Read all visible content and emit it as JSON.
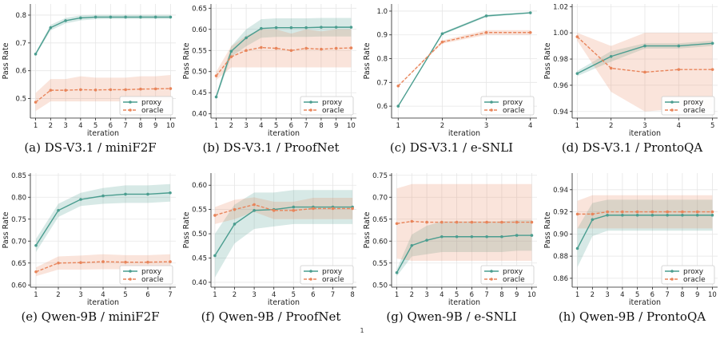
{
  "colors": {
    "proxy": "#4a9d8f",
    "oracle": "#e8845a",
    "grid": "#e6e6e6",
    "axis": "#222222"
  },
  "chart_data": [
    {
      "type": "line",
      "caption": "(a) DS-V3.1 / miniF2F",
      "xlabel": "iteration",
      "ylabel": "Pass Rate",
      "x": [
        1,
        2,
        3,
        4,
        5,
        6,
        7,
        8,
        9,
        10
      ],
      "xlim": [
        0.65,
        10.35
      ],
      "ylim": [
        0.43,
        0.84
      ],
      "yticks": [
        0.5,
        0.6,
        0.7,
        0.8
      ],
      "tick_decimals": 1,
      "grid": true,
      "legend": "lower-right",
      "series": [
        {
          "name": "proxy",
          "key": "proxy",
          "values": [
            0.66,
            0.755,
            0.78,
            0.79,
            0.793,
            0.793,
            0.793,
            0.793,
            0.793,
            0.793
          ],
          "lo": [
            0.655,
            0.745,
            0.77,
            0.781,
            0.785,
            0.786,
            0.786,
            0.786,
            0.786,
            0.786
          ],
          "hi": [
            0.665,
            0.765,
            0.79,
            0.799,
            0.801,
            0.801,
            0.801,
            0.801,
            0.801,
            0.801
          ]
        },
        {
          "name": "oracle",
          "key": "oracle",
          "values": [
            0.487,
            0.53,
            0.53,
            0.532,
            0.531,
            0.532,
            0.532,
            0.534,
            0.535,
            0.536
          ],
          "lo": [
            0.455,
            0.49,
            0.49,
            0.49,
            0.49,
            0.49,
            0.49,
            0.49,
            0.49,
            0.49
          ],
          "hi": [
            0.52,
            0.57,
            0.57,
            0.58,
            0.575,
            0.575,
            0.575,
            0.58,
            0.58,
            0.585
          ]
        }
      ]
    },
    {
      "type": "line",
      "caption": "(b) DS-V3.1 / ProofNet",
      "xlabel": "iteration",
      "ylabel": "Pass Rate",
      "x": [
        1,
        2,
        3,
        4,
        5,
        6,
        7,
        8,
        9,
        10
      ],
      "xlim": [
        0.65,
        10.35
      ],
      "ylim": [
        0.39,
        0.66
      ],
      "yticks": [
        0.4,
        0.45,
        0.5,
        0.55,
        0.6,
        0.65
      ],
      "tick_decimals": 2,
      "grid": true,
      "legend": "lower-right",
      "series": [
        {
          "name": "proxy",
          "key": "proxy",
          "values": [
            0.44,
            0.548,
            0.58,
            0.602,
            0.604,
            0.604,
            0.604,
            0.605,
            0.605,
            0.605
          ],
          "lo": [
            0.435,
            0.535,
            0.56,
            0.58,
            0.582,
            0.582,
            0.582,
            0.583,
            0.583,
            0.583
          ],
          "hi": [
            0.445,
            0.56,
            0.6,
            0.624,
            0.626,
            0.626,
            0.626,
            0.627,
            0.627,
            0.627
          ]
        },
        {
          "name": "oracle",
          "key": "oracle",
          "values": [
            0.49,
            0.535,
            0.55,
            0.557,
            0.555,
            0.55,
            0.555,
            0.553,
            0.555,
            0.556
          ],
          "lo": [
            0.48,
            0.51,
            0.51,
            0.51,
            0.51,
            0.51,
            0.51,
            0.51,
            0.51,
            0.51
          ],
          "hi": [
            0.5,
            0.56,
            0.585,
            0.6,
            0.6,
            0.59,
            0.6,
            0.595,
            0.6,
            0.6
          ]
        }
      ]
    },
    {
      "type": "line",
      "caption": "(c) DS-V3.1 / e-SNLI",
      "xlabel": "iteration",
      "ylabel": "Pass Rate",
      "x": [
        1,
        2,
        3,
        4
      ],
      "xlim": [
        0.85,
        4.15
      ],
      "ylim": [
        0.55,
        1.03
      ],
      "yticks": [
        0.6,
        0.7,
        0.8,
        0.9,
        1.0
      ],
      "tick_decimals": 1,
      "grid": true,
      "legend": "lower-right",
      "series": [
        {
          "name": "proxy",
          "key": "proxy",
          "values": [
            0.6,
            0.905,
            0.98,
            0.993
          ],
          "lo": [
            0.6,
            0.9,
            0.975,
            0.99
          ],
          "hi": [
            0.6,
            0.91,
            0.985,
            0.996
          ]
        },
        {
          "name": "oracle",
          "key": "oracle",
          "values": [
            0.685,
            0.87,
            0.91,
            0.91
          ],
          "lo": [
            0.685,
            0.863,
            0.9,
            0.9
          ],
          "hi": [
            0.685,
            0.877,
            0.92,
            0.92
          ]
        }
      ]
    },
    {
      "type": "line",
      "caption": "(d) DS-V3.1 / ProntoQA",
      "xlabel": "iteration",
      "ylabel": "Pass Rate",
      "x": [
        1,
        2,
        3,
        4,
        5
      ],
      "xlim": [
        0.85,
        5.15
      ],
      "ylim": [
        0.935,
        1.022
      ],
      "yticks": [
        0.94,
        0.96,
        0.98,
        1.0,
        1.02
      ],
      "tick_decimals": 2,
      "grid": true,
      "legend": "lower-right",
      "series": [
        {
          "name": "proxy",
          "key": "proxy",
          "values": [
            0.969,
            0.982,
            0.99,
            0.99,
            0.992
          ],
          "lo": [
            0.967,
            0.978,
            0.988,
            0.988,
            0.99
          ],
          "hi": [
            0.971,
            0.986,
            0.992,
            0.992,
            0.994
          ]
        },
        {
          "name": "oracle",
          "key": "oracle",
          "values": [
            0.997,
            0.973,
            0.97,
            0.972,
            0.972
          ],
          "lo": [
            0.994,
            0.955,
            0.94,
            0.942,
            0.942
          ],
          "hi": [
            1.0,
            0.99,
            1.0,
            1.0,
            1.0
          ]
        }
      ]
    },
    {
      "type": "line",
      "caption": "(e) Qwen-9B / miniF2F",
      "xlabel": "iteration",
      "ylabel": "Pass Rate",
      "x": [
        1,
        2,
        3,
        4,
        5,
        6,
        7
      ],
      "xlim": [
        0.75,
        7.25
      ],
      "ylim": [
        0.595,
        0.855
      ],
      "yticks": [
        0.6,
        0.65,
        0.7,
        0.75,
        0.8,
        0.85
      ],
      "tick_decimals": 2,
      "grid": true,
      "legend": "lower-right",
      "series": [
        {
          "name": "proxy",
          "key": "proxy",
          "values": [
            0.69,
            0.77,
            0.795,
            0.803,
            0.807,
            0.807,
            0.81
          ],
          "lo": [
            0.675,
            0.755,
            0.78,
            0.785,
            0.787,
            0.787,
            0.79
          ],
          "hi": [
            0.705,
            0.785,
            0.81,
            0.821,
            0.827,
            0.827,
            0.83
          ]
        },
        {
          "name": "oracle",
          "key": "oracle",
          "values": [
            0.63,
            0.65,
            0.651,
            0.653,
            0.652,
            0.652,
            0.653
          ],
          "lo": [
            0.62,
            0.635,
            0.635,
            0.636,
            0.636,
            0.636,
            0.636
          ],
          "hi": [
            0.64,
            0.665,
            0.667,
            0.67,
            0.668,
            0.668,
            0.67
          ]
        }
      ]
    },
    {
      "type": "line",
      "caption": "(f) Qwen-9B / ProofNet",
      "xlabel": "iteration",
      "ylabel": "Pass Rate",
      "x": [
        1,
        2,
        3,
        4,
        5,
        6,
        7,
        8
      ],
      "xlim": [
        0.8,
        8.2
      ],
      "ylim": [
        0.39,
        0.625
      ],
      "yticks": [
        0.4,
        0.45,
        0.5,
        0.55,
        0.6
      ],
      "tick_decimals": 2,
      "grid": true,
      "legend": "lower-right",
      "series": [
        {
          "name": "proxy",
          "key": "proxy",
          "values": [
            0.455,
            0.52,
            0.548,
            0.55,
            0.555,
            0.555,
            0.555,
            0.555
          ],
          "lo": [
            0.41,
            0.48,
            0.51,
            0.515,
            0.52,
            0.52,
            0.52,
            0.52
          ],
          "hi": [
            0.5,
            0.56,
            0.585,
            0.585,
            0.59,
            0.59,
            0.59,
            0.59
          ]
        },
        {
          "name": "oracle",
          "key": "oracle",
          "values": [
            0.538,
            0.55,
            0.56,
            0.548,
            0.548,
            0.552,
            0.552,
            0.552
          ],
          "lo": [
            0.52,
            0.53,
            0.545,
            0.53,
            0.53,
            0.53,
            0.53,
            0.53
          ],
          "hi": [
            0.555,
            0.57,
            0.575,
            0.566,
            0.566,
            0.574,
            0.574,
            0.574
          ]
        }
      ]
    },
    {
      "type": "line",
      "caption": "(g) Qwen-9B / e-SNLI",
      "xlabel": "iteration",
      "ylabel": "Pass Rate",
      "x": [
        1,
        2,
        3,
        4,
        5,
        6,
        7,
        8,
        9,
        10
      ],
      "xlim": [
        0.65,
        10.35
      ],
      "ylim": [
        0.495,
        0.755
      ],
      "yticks": [
        0.5,
        0.55,
        0.6,
        0.65,
        0.7,
        0.75
      ],
      "tick_decimals": 2,
      "grid": true,
      "legend": "lower-right",
      "series": [
        {
          "name": "proxy",
          "key": "proxy",
          "values": [
            0.528,
            0.59,
            0.602,
            0.61,
            0.61,
            0.61,
            0.61,
            0.61,
            0.613,
            0.613
          ],
          "lo": [
            0.52,
            0.565,
            0.57,
            0.575,
            0.575,
            0.575,
            0.575,
            0.575,
            0.578,
            0.578
          ],
          "hi": [
            0.536,
            0.615,
            0.635,
            0.645,
            0.645,
            0.645,
            0.645,
            0.645,
            0.648,
            0.648
          ]
        },
        {
          "name": "oracle",
          "key": "oracle",
          "values": [
            0.64,
            0.645,
            0.643,
            0.643,
            0.643,
            0.643,
            0.643,
            0.643,
            0.643,
            0.643
          ],
          "lo": [
            0.56,
            0.555,
            0.555,
            0.555,
            0.555,
            0.555,
            0.555,
            0.555,
            0.555,
            0.555
          ],
          "hi": [
            0.72,
            0.73,
            0.73,
            0.73,
            0.73,
            0.73,
            0.73,
            0.73,
            0.73,
            0.73
          ]
        }
      ]
    },
    {
      "type": "line",
      "caption": "(h) Qwen-9B / ProntoQA",
      "xlabel": "iteration",
      "ylabel": "Pass Rate",
      "x": [
        1,
        2,
        3,
        4,
        5,
        6,
        7,
        8,
        9,
        10
      ],
      "xlim": [
        0.65,
        10.35
      ],
      "ylim": [
        0.852,
        0.955
      ],
      "yticks": [
        0.86,
        0.88,
        0.9,
        0.92,
        0.94
      ],
      "tick_decimals": 2,
      "grid": true,
      "legend": "lower-right",
      "series": [
        {
          "name": "proxy",
          "key": "proxy",
          "values": [
            0.887,
            0.913,
            0.917,
            0.917,
            0.917,
            0.917,
            0.917,
            0.917,
            0.917,
            0.917
          ],
          "lo": [
            0.87,
            0.898,
            0.903,
            0.903,
            0.903,
            0.903,
            0.903,
            0.903,
            0.903,
            0.903
          ],
          "hi": [
            0.905,
            0.928,
            0.931,
            0.931,
            0.931,
            0.931,
            0.931,
            0.931,
            0.931,
            0.931
          ]
        },
        {
          "name": "oracle",
          "key": "oracle",
          "values": [
            0.918,
            0.918,
            0.92,
            0.92,
            0.92,
            0.92,
            0.92,
            0.92,
            0.92,
            0.92
          ],
          "lo": [
            0.905,
            0.905,
            0.905,
            0.905,
            0.905,
            0.905,
            0.905,
            0.905,
            0.905,
            0.905
          ],
          "hi": [
            0.93,
            0.935,
            0.935,
            0.935,
            0.935,
            0.935,
            0.935,
            0.935,
            0.935,
            0.935
          ]
        }
      ]
    }
  ],
  "footnote": "1"
}
